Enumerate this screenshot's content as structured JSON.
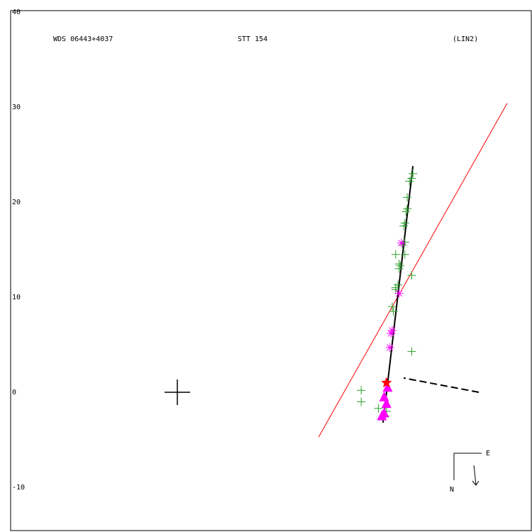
{
  "header": {
    "left": "WDS 06443+4037",
    "center": "STT 154",
    "right": "(LIN2)"
  },
  "compass": {
    "east_label": "E",
    "north_label": "N"
  },
  "chart_data": {
    "type": "scatter",
    "ylim": [
      -10,
      40
    ],
    "y_ticks": [
      40,
      30,
      20,
      10,
      0,
      -10
    ],
    "grid": false,
    "colors": {
      "frame": "#000000",
      "micrometer": "#2ca02c",
      "interferometric": "#ff00ff",
      "triangle": "#ff00ff",
      "star": "#ff0000",
      "red_line": "#ff0000",
      "fit_line": "#000000"
    },
    "primary": [
      0,
      0
    ],
    "micrometer_points": [
      [
        20.5,
        23.0
      ],
      [
        20.4,
        22.5
      ],
      [
        20.2,
        22.2
      ],
      [
        20.0,
        20.5
      ],
      [
        20.0,
        19.3
      ],
      [
        19.9,
        19.0
      ],
      [
        19.8,
        17.8
      ],
      [
        19.7,
        17.5
      ],
      [
        19.8,
        15.8
      ],
      [
        19.6,
        15.5
      ],
      [
        19.8,
        14.5
      ],
      [
        19.0,
        14.5
      ],
      [
        19.3,
        13.5
      ],
      [
        19.4,
        13.3
      ],
      [
        19.3,
        13.0
      ],
      [
        20.4,
        12.3
      ],
      [
        19.2,
        11.3
      ],
      [
        19.0,
        11.0
      ],
      [
        19.0,
        10.8
      ],
      [
        18.7,
        9.0
      ],
      [
        18.8,
        8.5
      ],
      [
        20.4,
        4.3
      ],
      [
        16.0,
        0.2
      ],
      [
        16.0,
        -1.0
      ],
      [
        17.5,
        -1.7
      ],
      [
        18.2,
        -2.0
      ],
      [
        18.1,
        -2.5
      ]
    ],
    "interferometric_points": [
      [
        19.5,
        15.7
      ],
      [
        19.3,
        10.4
      ],
      [
        18.7,
        6.5
      ],
      [
        18.6,
        6.2
      ],
      [
        18.5,
        4.7
      ]
    ],
    "triangle_points": [
      [
        18.3,
        0.5
      ],
      [
        18.0,
        -0.5
      ],
      [
        18.2,
        -1.2
      ],
      [
        18.0,
        -2.2
      ],
      [
        17.8,
        -2.5
      ]
    ],
    "star_point": [
      18.2,
      1.0
    ],
    "fit_line": [
      [
        20.5,
        23.8
      ],
      [
        17.9,
        -3.2
      ]
    ],
    "red_line": [
      [
        28.7,
        30.4
      ],
      [
        12.3,
        -4.7
      ]
    ],
    "connector_line": [
      [
        25.0,
        0.0
      ],
      [
        19.7,
        1.5
      ]
    ]
  }
}
